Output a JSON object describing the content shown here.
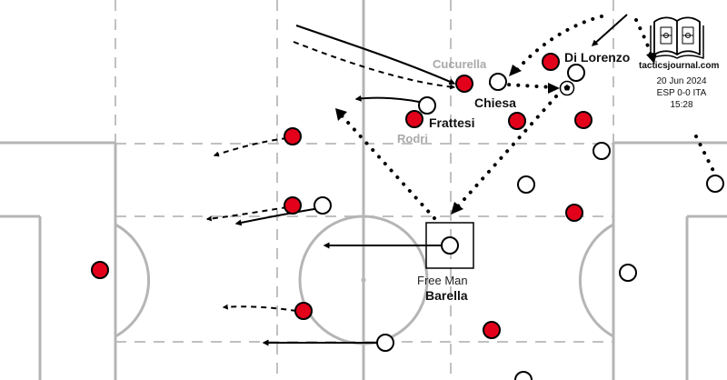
{
  "colors": {
    "team_red": "#e2001a",
    "team_white": "#ffffff",
    "pitch_lines": "#b5b5b5",
    "zone_lines": "#b5b5b5",
    "arrows": "#000000",
    "grey_label": "#a9a9a9"
  },
  "labels": {
    "cucurella": "Cucurella",
    "chiesa": "Chiesa",
    "di_lorenzo": "Di Lorenzo",
    "frattesi": "Frattesi",
    "rodri": "Rodri",
    "free_man": "Free Man",
    "barella": "Barella"
  },
  "branding": {
    "site": "tacticsjournal.com",
    "logo": "open-book-pitch-logo"
  },
  "match_info": {
    "date": "20 Jun 2024",
    "score": "ESP 0-0 ITA",
    "time": "15:28"
  },
  "icons": [
    "football-icon",
    "book-logo-icon"
  ]
}
